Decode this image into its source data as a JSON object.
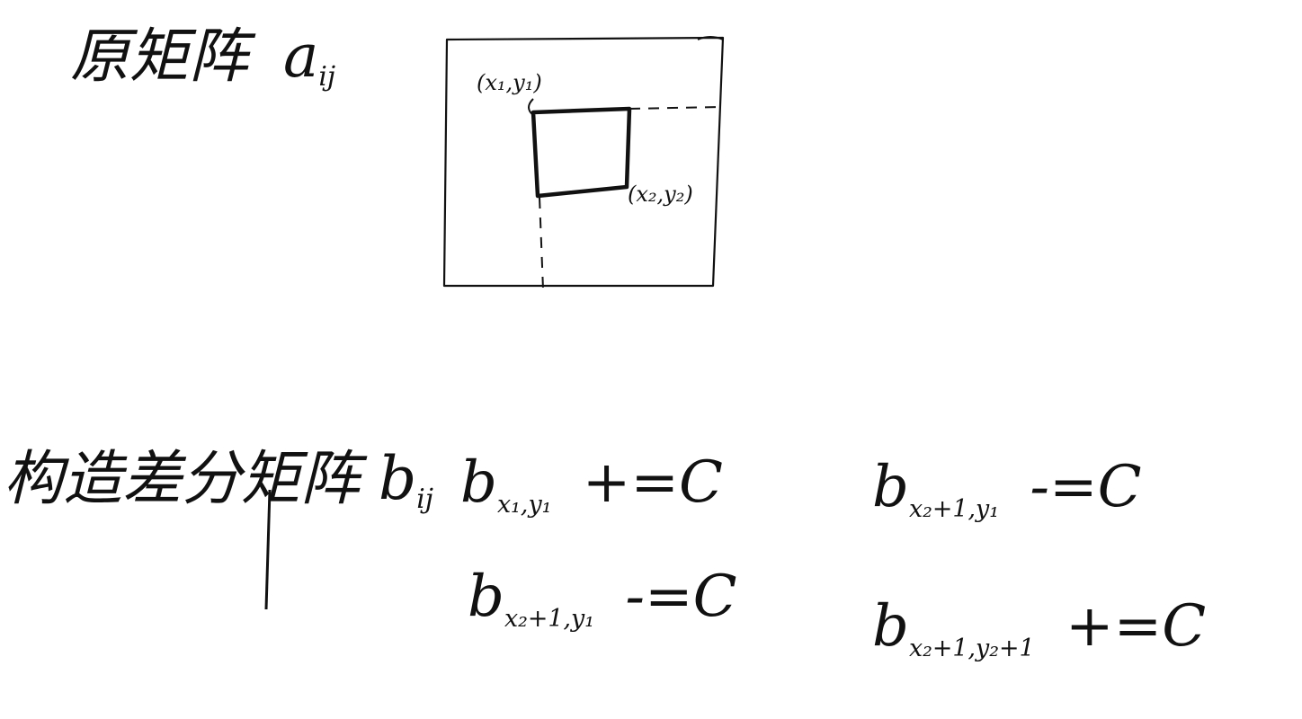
{
  "original_matrix": {
    "label": "原矩阵",
    "symbol": "a",
    "subscript": "ij"
  },
  "diagram": {
    "point1": "(x₁,y₁)",
    "point2": "(x₂,y₂)"
  },
  "difference_matrix": {
    "label": "构造差分矩阵",
    "symbol": "b",
    "subscript": "ij"
  },
  "equations": [
    {
      "base": "b",
      "subscript": "x₁,y₁",
      "op": "+=C"
    },
    {
      "base": "b",
      "subscript": "x₂+1,y₁",
      "op": "-=C"
    },
    {
      "base": "b",
      "subscript": "x₂+1,y₁",
      "op": "-=C"
    },
    {
      "base": "b",
      "subscript": "x₂+1,y₂+1",
      "op": "+=C"
    }
  ]
}
